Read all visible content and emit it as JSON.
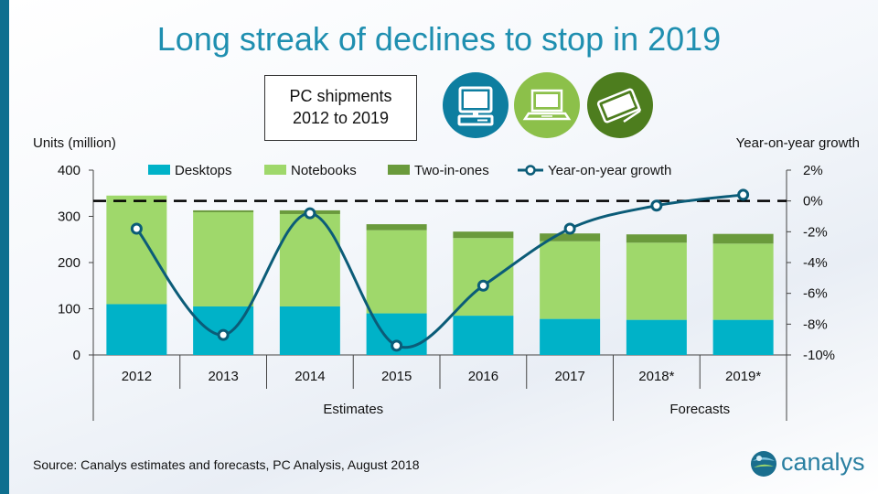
{
  "title": "Long streak of declines to stop in 2019",
  "subtitle": [
    "PC shipments",
    "2012 to 2019"
  ],
  "source": "Source:  Canalys estimates and forecasts, PC Analysis, August 2018",
  "logo_text": "canalys",
  "icons": [
    "desktop-icon",
    "notebook-icon",
    "two-in-one-icon"
  ],
  "colors": {
    "desktops": "#00b2c8",
    "notebooks": "#9fd86b",
    "two_in_ones": "#6a9a3c",
    "yoy": "#0b5c78",
    "title": "#1f8fb0"
  },
  "chart_data": {
    "type": "bar",
    "stacked": true,
    "categories": [
      "2012",
      "2013",
      "2014",
      "2015",
      "2016",
      "2017",
      "2018*",
      "2019*"
    ],
    "category_groups": [
      {
        "label": "Estimates",
        "span": [
          0,
          5
        ]
      },
      {
        "label": "Forecasts",
        "span": [
          6,
          7
        ]
      }
    ],
    "series": [
      {
        "name": "Desktops",
        "values": [
          110,
          105,
          105,
          90,
          85,
          78,
          76,
          76
        ]
      },
      {
        "name": "Notebooks",
        "values": [
          235,
          204,
          200,
          180,
          168,
          168,
          167,
          165
        ]
      },
      {
        "name": "Two-in-ones",
        "values": [
          0,
          4,
          8,
          13,
          14,
          17,
          18,
          21
        ]
      }
    ],
    "line_series": {
      "name": "Year-on-year growth",
      "axis": "right",
      "values": [
        -1.8,
        -8.7,
        -0.8,
        -9.4,
        -5.5,
        -1.8,
        -0.3,
        0.4
      ]
    },
    "ylabel": "Units (million)",
    "ylim": [
      0,
      400
    ],
    "yticks": [
      "400",
      "300",
      "200",
      "100",
      "0"
    ],
    "y2label": "Year-on-year growth",
    "y2lim": [
      -10,
      2
    ],
    "y2ticks": [
      "2%",
      "0%",
      "-2%",
      "-4%",
      "-6%",
      "-8%",
      "-10%"
    ],
    "zero_line": true,
    "legend": {
      "position": "top"
    },
    "grid": false
  }
}
